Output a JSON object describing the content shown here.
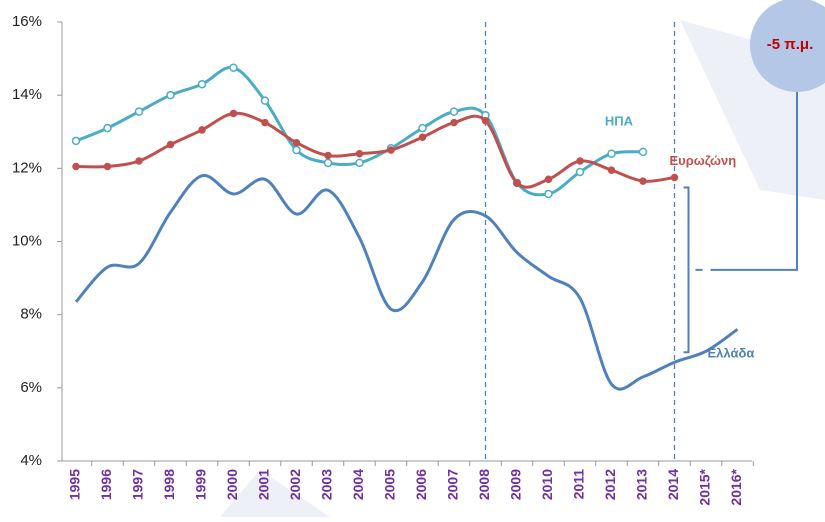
{
  "chart_data": {
    "type": "line",
    "annotation": "-5 π.μ.",
    "categories": [
      "1995",
      "1996",
      "1997",
      "1998",
      "1999",
      "2000",
      "2001",
      "2002",
      "2003",
      "2004",
      "2005",
      "2006",
      "2007",
      "2008",
      "2009",
      "2010",
      "2011",
      "2012",
      "2013",
      "2014",
      "2015*",
      "2016*"
    ],
    "series": [
      {
        "name": "ΗΠΑ",
        "color": "#4bacc6",
        "marker": "hollow",
        "values": [
          12.75,
          13.1,
          13.55,
          14.0,
          14.3,
          14.75,
          13.85,
          12.5,
          12.15,
          12.15,
          12.55,
          13.1,
          13.55,
          13.45,
          11.6,
          11.3,
          11.9,
          12.4,
          12.45,
          null,
          null,
          null
        ]
      },
      {
        "name": "Ευρωζώνη",
        "color": "#c0504d",
        "marker": "filled",
        "values": [
          12.05,
          12.05,
          12.2,
          12.65,
          13.05,
          13.5,
          13.25,
          12.7,
          12.35,
          12.4,
          12.5,
          12.85,
          13.25,
          13.3,
          11.6,
          11.7,
          12.2,
          11.95,
          11.65,
          11.75,
          null,
          null
        ]
      },
      {
        "name": "Ελλάδα",
        "color": "#4f81bd",
        "marker": "none",
        "values": [
          8.35,
          9.3,
          9.4,
          10.8,
          11.8,
          11.3,
          11.7,
          10.75,
          11.4,
          10.1,
          8.15,
          8.9,
          10.6,
          10.7,
          9.7,
          9.05,
          8.45,
          6.1,
          6.3,
          6.7,
          7.0,
          7.6
        ]
      }
    ],
    "ylim": [
      4,
      16
    ],
    "yticks": [
      {
        "value": 4,
        "label": "4%"
      },
      {
        "value": 6,
        "label": "6%"
      },
      {
        "value": 8,
        "label": "8%"
      },
      {
        "value": 10,
        "label": "10%"
      },
      {
        "value": 12,
        "label": "12%"
      },
      {
        "value": 14,
        "label": "14%"
      },
      {
        "value": 16,
        "label": "16%"
      }
    ],
    "grid": false,
    "vertical_lines_at": [
      "2008",
      "2014"
    ]
  }
}
